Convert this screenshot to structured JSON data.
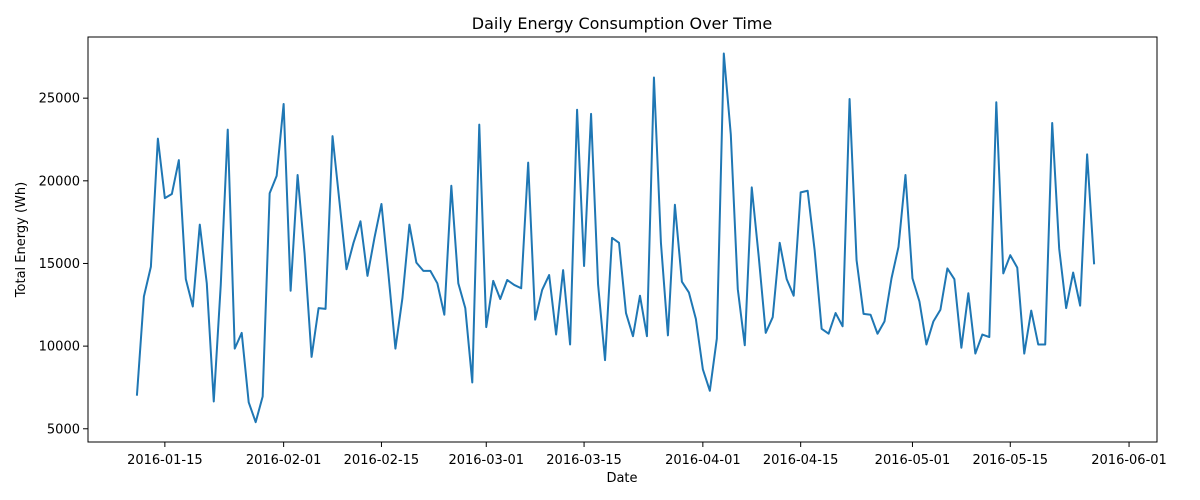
{
  "chart_data": {
    "type": "line",
    "title": "Daily Energy Consumption Over Time",
    "xlabel": "Date",
    "ylabel": "Total Energy (Wh)",
    "xlim": [
      "2016-01-04",
      "2016-06-05"
    ],
    "ylim": [
      4200,
      28700
    ],
    "xticks": [
      "2016-01-15",
      "2016-02-01",
      "2016-02-15",
      "2016-03-01",
      "2016-03-15",
      "2016-04-01",
      "2016-04-15",
      "2016-05-01",
      "2016-05-15",
      "2016-06-01"
    ],
    "yticks": [
      5000,
      10000,
      15000,
      20000,
      25000
    ],
    "grid": false,
    "series": [
      {
        "color": "#1f77b4",
        "x": [
          "2016-01-11",
          "2016-01-12",
          "2016-01-13",
          "2016-01-14",
          "2016-01-15",
          "2016-01-16",
          "2016-01-17",
          "2016-01-18",
          "2016-01-19",
          "2016-01-20",
          "2016-01-21",
          "2016-01-22",
          "2016-01-23",
          "2016-01-24",
          "2016-01-25",
          "2016-01-26",
          "2016-01-27",
          "2016-01-28",
          "2016-01-29",
          "2016-01-30",
          "2016-01-31",
          "2016-02-01",
          "2016-02-02",
          "2016-02-03",
          "2016-02-04",
          "2016-02-05",
          "2016-02-06",
          "2016-02-07",
          "2016-02-08",
          "2016-02-09",
          "2016-02-10",
          "2016-02-11",
          "2016-02-12",
          "2016-02-13",
          "2016-02-14",
          "2016-02-15",
          "2016-02-16",
          "2016-02-17",
          "2016-02-18",
          "2016-02-19",
          "2016-02-20",
          "2016-02-21",
          "2016-02-22",
          "2016-02-23",
          "2016-02-24",
          "2016-02-25",
          "2016-02-26",
          "2016-02-27",
          "2016-02-28",
          "2016-02-29",
          "2016-03-01",
          "2016-03-02",
          "2016-03-03",
          "2016-03-04",
          "2016-03-05",
          "2016-03-06",
          "2016-03-07",
          "2016-03-08",
          "2016-03-09",
          "2016-03-10",
          "2016-03-11",
          "2016-03-12",
          "2016-03-13",
          "2016-03-14",
          "2016-03-15",
          "2016-03-16",
          "2016-03-17",
          "2016-03-18",
          "2016-03-19",
          "2016-03-20",
          "2016-03-21",
          "2016-03-22",
          "2016-03-23",
          "2016-03-24",
          "2016-03-25",
          "2016-03-26",
          "2016-03-27",
          "2016-03-28",
          "2016-03-29",
          "2016-03-30",
          "2016-03-31",
          "2016-04-01",
          "2016-04-02",
          "2016-04-03",
          "2016-04-04",
          "2016-04-05",
          "2016-04-06",
          "2016-04-07",
          "2016-04-08",
          "2016-04-09",
          "2016-04-10",
          "2016-04-11",
          "2016-04-12",
          "2016-04-13",
          "2016-04-14",
          "2016-04-15",
          "2016-04-16",
          "2016-04-17",
          "2016-04-18",
          "2016-04-19",
          "2016-04-20",
          "2016-04-21",
          "2016-04-22",
          "2016-04-23",
          "2016-04-24",
          "2016-04-25",
          "2016-04-26",
          "2016-04-27",
          "2016-04-28",
          "2016-04-29",
          "2016-04-30",
          "2016-05-01",
          "2016-05-02",
          "2016-05-03",
          "2016-05-04",
          "2016-05-05",
          "2016-05-06",
          "2016-05-07",
          "2016-05-08",
          "2016-05-09",
          "2016-05-10",
          "2016-05-11",
          "2016-05-12",
          "2016-05-13",
          "2016-05-14",
          "2016-05-15",
          "2016-05-16",
          "2016-05-17",
          "2016-05-18",
          "2016-05-19",
          "2016-05-20",
          "2016-05-21",
          "2016-05-22",
          "2016-05-23",
          "2016-05-24",
          "2016-05-25",
          "2016-05-26",
          "2016-05-27"
        ],
        "values": [
          7000,
          13000,
          14800,
          22550,
          18950,
          19200,
          21250,
          14050,
          12400,
          17350,
          13800,
          6650,
          13700,
          23100,
          9850,
          10800,
          6600,
          5400,
          6950,
          19250,
          20300,
          24650,
          13350,
          20350,
          15600,
          9350,
          12300,
          12250,
          22700,
          18700,
          14650,
          16250,
          17550,
          14250,
          16550,
          18600,
          14350,
          9850,
          12900,
          17350,
          15050,
          14550,
          14550,
          13800,
          11900,
          19700,
          13800,
          12300,
          7800,
          23400,
          11150,
          13950,
          12850,
          14000,
          13700,
          13500,
          21100,
          11600,
          13400,
          14300,
          10700,
          14600,
          10100,
          24300,
          14850,
          24050,
          13750,
          9150,
          16550,
          16250,
          12000,
          10600,
          13050,
          10600,
          26250,
          16250,
          10650,
          18550,
          13900,
          13250,
          11650,
          8600,
          7300,
          10450,
          27700,
          22800,
          13450,
          10050,
          19600,
          15400,
          10800,
          11750,
          16250,
          14050,
          13050,
          19300,
          19400,
          15800,
          11050,
          10750,
          12000,
          11200,
          24950,
          15200,
          11950,
          11900,
          10750,
          11500,
          14100,
          16000,
          20350,
          14100,
          12700,
          10100,
          11500,
          12200,
          14700,
          14050,
          9900,
          13200,
          9550,
          10700,
          10550,
          24750,
          14400,
          15500,
          14750,
          9550,
          12150,
          10100,
          10100,
          23500,
          15900,
          12300,
          14450,
          12450,
          21600,
          14950
        ]
      }
    ]
  }
}
